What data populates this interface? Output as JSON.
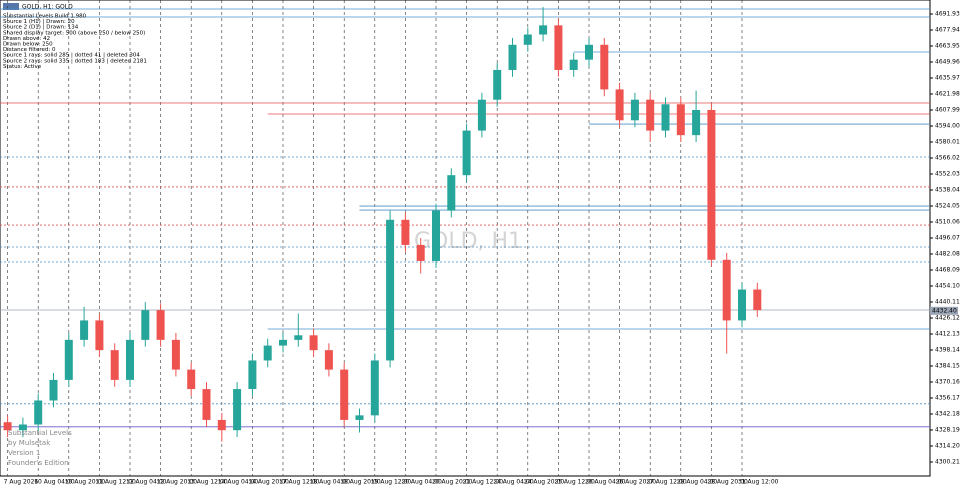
{
  "chart_data": {
    "type": "candlestick",
    "title": "GOLD, H1: GOLD",
    "watermark": "GOLD, H1",
    "info_lines": [
      "Substantial Levels Build 1.980",
      "Source 1 (H1) | Drawn: 20",
      "Source 2 (D1) | Drawn: 134",
      "Shared display target: 500 (above 250 / below 250)",
      "Drawn above: 42",
      "Drawn below: 250",
      "Distance filtered: 0",
      "Source 1 rays: solid 285 | dotted 41 | deleted 304",
      "Source 2 rays: solid 335 | dotted 183 | deleted 2181",
      "Status: Active"
    ],
    "footer_lines": [
      "Substantial Levels",
      "by Mulsetak",
      "Version 1",
      "Founder's Edition"
    ],
    "categories": [
      "7 Aug 2026",
      null,
      "10 Aug 04:00",
      null,
      "10 Aug 20:00",
      null,
      "11 Aug 12:00",
      null,
      "12 Aug 04:00",
      null,
      "12 Aug 20:00",
      null,
      "13 Aug 12:00",
      null,
      "14 Aug 04:00",
      null,
      "14 Aug 20:00",
      null,
      "17 Aug 12:00",
      null,
      "18 Aug 04:00",
      null,
      "18 Aug 20:00",
      null,
      "19 Aug 12:00",
      null,
      "20 Aug 04:00",
      null,
      "20 Aug 20:00",
      null,
      "21 Aug 12:00",
      null,
      "24 Aug 04:00",
      null,
      "24 Aug 20:00",
      null,
      "25 Aug 12:00",
      null,
      "26 Aug 04:00",
      null,
      "26 Aug 20:00",
      null,
      "27 Aug 12:00",
      null,
      "28 Aug 04:00",
      null,
      "28 Aug 20:00",
      null,
      "31 Aug 12:00",
      null
    ],
    "open": [
      4335,
      4328,
      4333,
      4354,
      4372,
      4407,
      4424,
      4398,
      4372,
      4407,
      4433,
      4407,
      4381,
      4364,
      4337,
      4328,
      4364,
      4389,
      4402,
      4407,
      4411,
      4398,
      4381,
      4337,
      4341,
      4389,
      4512,
      4490,
      4476,
      4520,
      4551,
      4590,
      4617,
      4643,
      4665,
      4674,
      4682,
      4643,
      4652,
      4665,
      4626,
      4599,
      4617,
      4590,
      4613,
      4586,
      4608,
      4477,
      4424,
      4451
    ],
    "high": [
      4341,
      4339,
      4360,
      4378,
      4413,
      4436,
      4430,
      4404,
      4413,
      4440,
      4439,
      4413,
      4387,
      4370,
      4343,
      4370,
      4395,
      4408,
      4413,
      4430,
      4417,
      4404,
      4387,
      4347,
      4395,
      4520,
      4518,
      4496,
      4526,
      4557,
      4596,
      4623,
      4649,
      4671,
      4680,
      4698,
      4688,
      4658,
      4671,
      4671,
      4632,
      4623,
      4623,
      4619,
      4619,
      4625,
      4614,
      4483,
      4457,
      4457
    ],
    "low": [
      4322,
      4322,
      4327,
      4348,
      4366,
      4401,
      4392,
      4366,
      4366,
      4401,
      4401,
      4375,
      4358,
      4331,
      4318,
      4322,
      4358,
      4383,
      4396,
      4401,
      4392,
      4375,
      4331,
      4326,
      4335,
      4383,
      4484,
      4465,
      4470,
      4514,
      4545,
      4584,
      4611,
      4637,
      4659,
      4668,
      4637,
      4637,
      4646,
      4620,
      4593,
      4593,
      4580,
      4584,
      4580,
      4580,
      4471,
      4395,
      4418,
      4427
    ],
    "close": [
      4328,
      4333,
      4354,
      4372,
      4407,
      4424,
      4398,
      4372,
      4407,
      4433,
      4407,
      4381,
      4364,
      4337,
      4328,
      4364,
      4389,
      4402,
      4407,
      4411,
      4398,
      4381,
      4337,
      4341,
      4389,
      4512,
      4490,
      4476,
      4520,
      4551,
      4590,
      4617,
      4643,
      4665,
      4674,
      4682,
      4643,
      4652,
      4665,
      4626,
      4599,
      4617,
      4590,
      4613,
      4586,
      4608,
      4477,
      4424,
      4451,
      4433
    ],
    "up_color": "#26a69a",
    "down_color": "#ef5350",
    "ylim": [
      4289.72,
      4700.67
    ],
    "yticks": [
      4691.93,
      4677.94,
      4663.95,
      4649.96,
      4635.97,
      4621.98,
      4607.99,
      {
        "value": 4594,
        "label": "4594.00"
      },
      4580.01,
      4566.02,
      4552.03,
      4538.04,
      4524.05,
      4510.06,
      4496.07,
      4482.08,
      4468.09,
      {
        "value": 4454.1,
        "label": "4454.10"
      },
      4440.11,
      4426.12,
      4412.13,
      4398.14,
      4384.15,
      4370.16,
      4356.17,
      4342.18,
      4328.19,
      {
        "value": 4314.2,
        "label": "4314.20"
      },
      4300.21
    ],
    "grid": true,
    "levels": [
      {
        "value": 4696.3,
        "color": "#4a90c8",
        "dashed": false,
        "start": 0
      },
      {
        "value": 4689.3,
        "color": "#4a90c8",
        "dashed": false,
        "start": 0
      },
      {
        "value": 4658.7,
        "color": "#4a90c8",
        "dashed": false,
        "start": 37
      },
      {
        "value": 4614.1,
        "color": "#e05050",
        "dashed": false,
        "start": 0
      },
      {
        "value": 4604.5,
        "color": "#e05050",
        "dashed": false,
        "start": 17
      },
      {
        "value": 4595.7,
        "color": "#4a90c8",
        "dashed": false,
        "start": 38
      },
      {
        "value": 4566.9,
        "color": "#4a90c8",
        "dashed": true,
        "start": 0
      },
      {
        "value": 4540.7,
        "color": "#e05050",
        "dashed": true,
        "start": 0
      },
      {
        "value": 4524,
        "color": "#4a90c8",
        "dashed": false,
        "start": 23
      },
      {
        "value": 4520.5,
        "color": "#4a90c8",
        "dashed": false,
        "start": 23
      },
      {
        "value": 4507.4,
        "color": "#e05050",
        "dashed": true,
        "start": 0
      },
      {
        "value": 4488.2,
        "color": "#4a90c8",
        "dashed": true,
        "start": 0
      },
      {
        "value": 4475.1,
        "color": "#4a90c8",
        "dashed": true,
        "start": 0
      },
      {
        "value": 4433.1,
        "color": "#9aa4b4",
        "dashed": false,
        "start": 0
      },
      {
        "value": 4416.5,
        "color": "#4a90c8",
        "dashed": false,
        "start": 17
      },
      {
        "value": 4351.1,
        "color": "#4a90c8",
        "dashed": true,
        "start": 0
      },
      {
        "value": 4331,
        "color": "#6a5acd",
        "dashed": false,
        "start": 0
      }
    ],
    "current_price": {
      "value": 4432.4,
      "label": "4432.40"
    }
  }
}
